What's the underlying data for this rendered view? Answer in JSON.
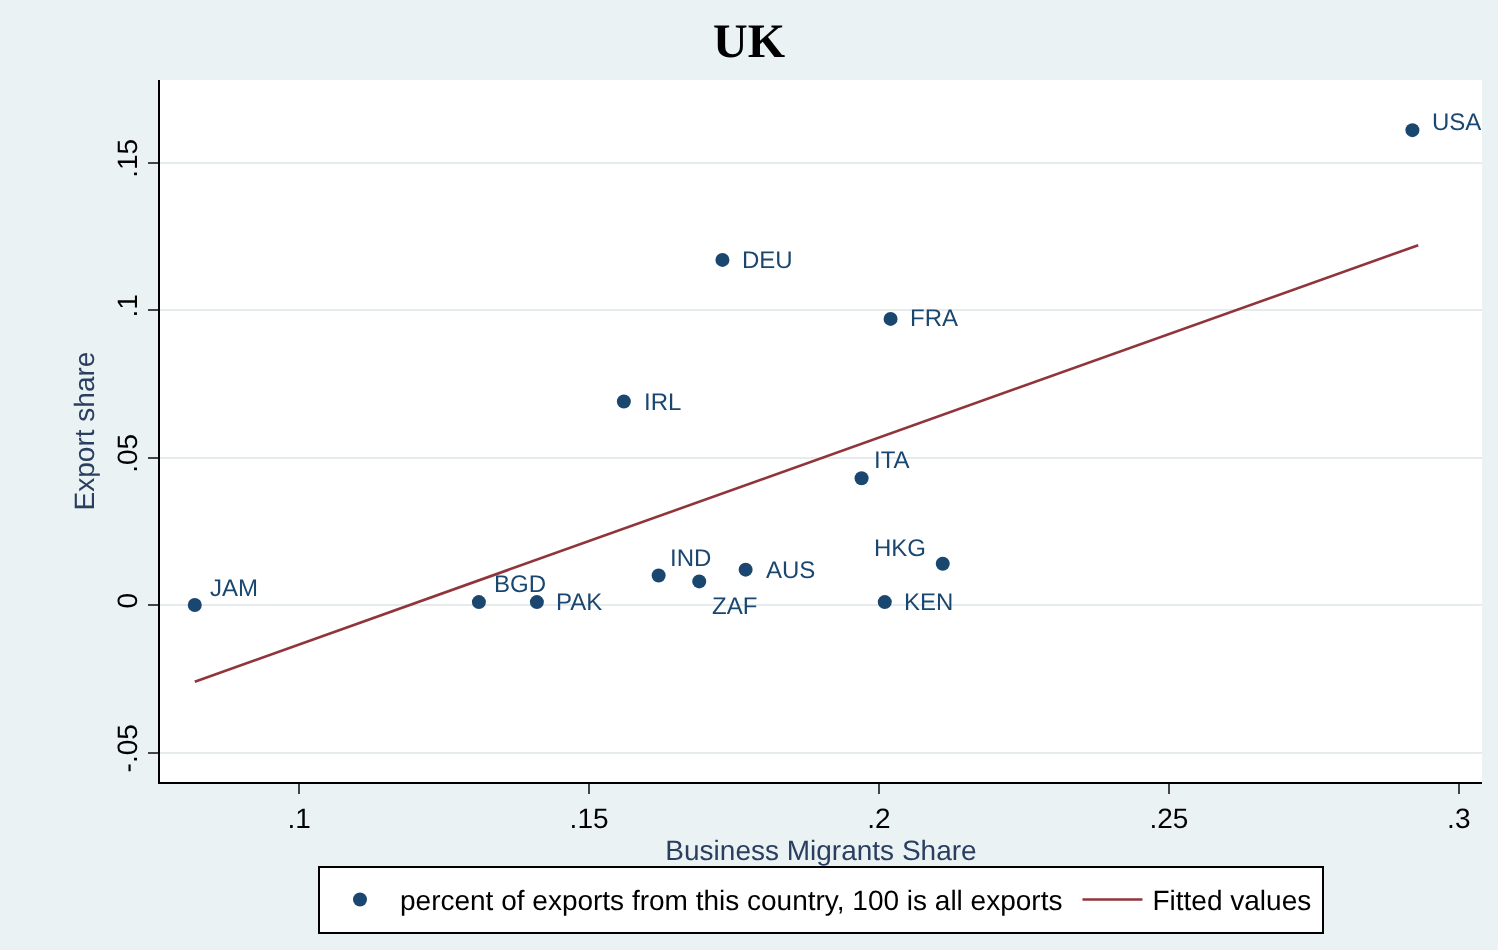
{
  "chart_data": {
    "type": "scatter",
    "title": "UK",
    "xlabel": "Business Migrants Share",
    "ylabel": "Export share",
    "xlim": [
      0.076,
      0.304
    ],
    "ylim": [
      -0.06,
      0.178
    ],
    "xticks": [
      {
        "value": 0.1,
        "label": ".1"
      },
      {
        "value": 0.15,
        "label": ".15"
      },
      {
        "value": 0.2,
        "label": ".2"
      },
      {
        "value": 0.25,
        "label": ".25"
      },
      {
        "value": 0.3,
        "label": ".3"
      }
    ],
    "yticks": [
      {
        "value": -0.05,
        "label": "-.05"
      },
      {
        "value": 0,
        "label": "0"
      },
      {
        "value": 0.05,
        "label": ".05"
      },
      {
        "value": 0.1,
        "label": ".1"
      },
      {
        "value": 0.15,
        "label": ".15"
      }
    ],
    "grid": "y",
    "legend": "bottom",
    "series": [
      {
        "name": "percent of exports from this country, 100 is all exports",
        "marker": "circle",
        "color": "#1a476f",
        "x": [
          0.292,
          0.173,
          0.202,
          0.156,
          0.197,
          0.211,
          0.201,
          0.177,
          0.169,
          0.162,
          0.141,
          0.131,
          0.082
        ],
        "values": [
          0.161,
          0.117,
          0.097,
          0.069,
          0.043,
          0.014,
          0.001,
          0.012,
          0.008,
          0.01,
          0.001,
          0.001,
          0.0
        ]
      },
      {
        "name": "Fitted values",
        "type": "line",
        "color": "#90353b",
        "x": [
          0.082,
          0.293
        ],
        "values": [
          -0.026,
          0.122
        ]
      }
    ],
    "annotations": [
      {
        "text": "USA",
        "x": 0.292,
        "y": 0.161
      },
      {
        "text": "DEU",
        "x": 0.173,
        "y": 0.117
      },
      {
        "text": "FRA",
        "x": 0.202,
        "y": 0.097
      },
      {
        "text": "IRL",
        "x": 0.156,
        "y": 0.069
      },
      {
        "text": "ITA",
        "x": 0.197,
        "y": 0.043
      },
      {
        "text": "HKG",
        "x": 0.211,
        "y": 0.014
      },
      {
        "text": "KEN",
        "x": 0.201,
        "y": 0.001
      },
      {
        "text": "AUS",
        "x": 0.177,
        "y": 0.012
      },
      {
        "text": "ZAF",
        "x": 0.169,
        "y": 0.008
      },
      {
        "text": "IND",
        "x": 0.162,
        "y": 0.01
      },
      {
        "text": "PAK",
        "x": 0.141,
        "y": 0.001
      },
      {
        "text": "BGD",
        "x": 0.131,
        "y": 0.001
      },
      {
        "text": "JAM",
        "x": 0.082,
        "y": 0.0
      }
    ]
  }
}
